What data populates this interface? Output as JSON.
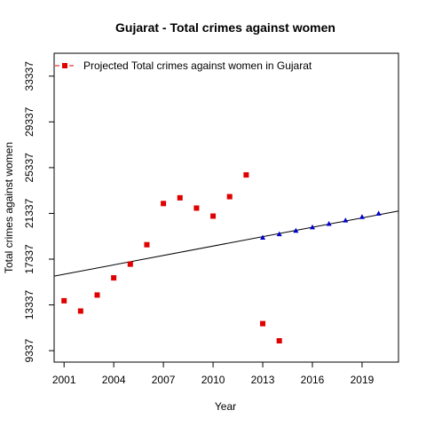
{
  "chart_data": {
    "type": "scatter",
    "title": "Gujarat  -  Total crimes against women",
    "xlabel": "Year",
    "ylabel": "Total crimes against women",
    "xlim": [
      2000.4,
      2021.2
    ],
    "ylim": [
      8337,
      35337
    ],
    "xticks": [
      2001,
      2004,
      2007,
      2010,
      2013,
      2016,
      2019
    ],
    "yticks": [
      9337,
      13337,
      17337,
      21337,
      25337,
      29337,
      33337
    ],
    "legend": {
      "position": "top-left",
      "label": "Projected  Total crimes against women  in  Gujarat"
    },
    "series": [
      {
        "marker": "square",
        "color": "#e00000",
        "points": [
          {
            "x": 2001,
            "y": 13700
          },
          {
            "x": 2002,
            "y": 12800
          },
          {
            "x": 2003,
            "y": 14200
          },
          {
            "x": 2004,
            "y": 15700
          },
          {
            "x": 2005,
            "y": 16900
          },
          {
            "x": 2006,
            "y": 18600
          },
          {
            "x": 2007,
            "y": 22200
          },
          {
            "x": 2008,
            "y": 22700
          },
          {
            "x": 2009,
            "y": 21800
          },
          {
            "x": 2010,
            "y": 21100
          },
          {
            "x": 2011,
            "y": 22800
          },
          {
            "x": 2012,
            "y": 24700
          },
          {
            "x": 2013,
            "y": 11700
          },
          {
            "x": 2014,
            "y": 10200
          }
        ]
      },
      {
        "marker": "triangle",
        "color": "#0000cc",
        "points": [
          {
            "x": 2013,
            "y": 19200
          },
          {
            "x": 2014,
            "y": 19500
          },
          {
            "x": 2015,
            "y": 19800
          },
          {
            "x": 2016,
            "y": 20100
          },
          {
            "x": 2017,
            "y": 20400
          },
          {
            "x": 2018,
            "y": 20700
          },
          {
            "x": 2019,
            "y": 21000
          },
          {
            "x": 2020,
            "y": 21300
          }
        ]
      }
    ],
    "trendline": {
      "x1": 2000.4,
      "y1": 15850,
      "x2": 2021.2,
      "y2": 21550,
      "color": "#000000"
    }
  }
}
